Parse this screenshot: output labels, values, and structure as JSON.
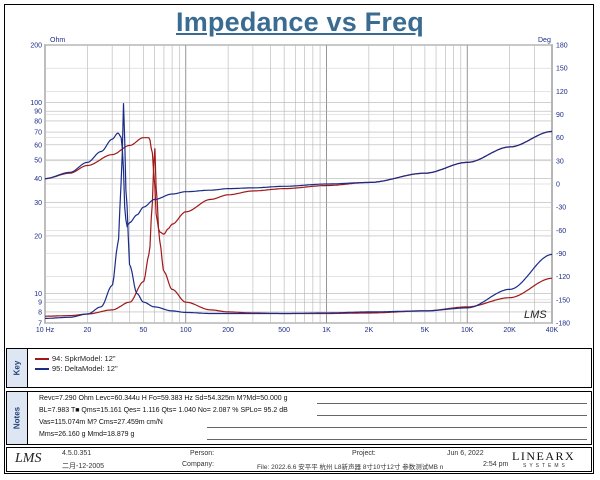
{
  "chart_data": {
    "type": "line",
    "title": "Impedance vs Freq",
    "left_unit": "Ohm",
    "right_unit": "Deg",
    "x_scale": "log",
    "xlim": [
      10,
      40000
    ],
    "ylim_left": [
      7,
      200
    ],
    "ylim_right": [
      -180,
      180
    ],
    "x_ticks": [
      {
        "v": 10,
        "t": "10 Hz"
      },
      {
        "v": 20,
        "t": "20"
      },
      {
        "v": 50,
        "t": "50"
      },
      {
        "v": 100,
        "t": "100"
      },
      {
        "v": 200,
        "t": "200"
      },
      {
        "v": 500,
        "t": "500"
      },
      {
        "v": 1000,
        "t": "1K"
      },
      {
        "v": 2000,
        "t": "2K"
      },
      {
        "v": 5000,
        "t": "5K"
      },
      {
        "v": 10000,
        "t": "10K"
      },
      {
        "v": 20000,
        "t": "20K"
      },
      {
        "v": 40000,
        "t": "40K"
      }
    ],
    "y_left_ticks": [
      {
        "v": 200,
        "t": "200"
      },
      {
        "v": 100,
        "t": "100"
      },
      {
        "v": 90,
        "t": "90"
      },
      {
        "v": 80,
        "t": "80"
      },
      {
        "v": 70,
        "t": "70"
      },
      {
        "v": 60,
        "t": "60"
      },
      {
        "v": 50,
        "t": "50"
      },
      {
        "v": 40,
        "t": "40"
      },
      {
        "v": 30,
        "t": "30"
      },
      {
        "v": 20,
        "t": "20"
      },
      {
        "v": 10,
        "t": "10"
      },
      {
        "v": 9,
        "t": "9"
      },
      {
        "v": 8,
        "t": "8"
      },
      {
        "v": 7,
        "t": "7"
      }
    ],
    "y_right_ticks": [
      180,
      150,
      120,
      90,
      60,
      30,
      0,
      -30,
      -60,
      -90,
      -120,
      -150,
      -180
    ],
    "grid": true,
    "series": [
      {
        "name": "94: SpkrModel: 12\"",
        "axis": "left",
        "color": "#a01818",
        "x": [
          10,
          15,
          20,
          30,
          40,
          50,
          55,
          58,
          60,
          62,
          65,
          70,
          80,
          100,
          150,
          200,
          300,
          500,
          1000,
          2000,
          5000,
          10000,
          20000,
          40000
        ],
        "y": [
          7.6,
          7.65,
          7.8,
          8.2,
          9.0,
          11.5,
          16,
          30,
          60,
          33,
          19,
          13,
          10.5,
          9,
          8.2,
          8.0,
          7.9,
          7.85,
          7.85,
          7.9,
          8.1,
          8.5,
          9.5,
          12
        ]
      },
      {
        "name": "94: SpkrModel: 12\" phase",
        "axis": "right",
        "color": "#a01818",
        "x": [
          10,
          15,
          20,
          30,
          40,
          50,
          55,
          58,
          60,
          62,
          65,
          70,
          75,
          80,
          100,
          150,
          200,
          300,
          500,
          1000,
          2000,
          5000,
          10000,
          20000,
          40000
        ],
        "y": [
          7,
          14,
          24,
          38,
          50,
          60,
          60,
          40,
          0,
          -45,
          -62,
          -65,
          -58,
          -52,
          -36,
          -20,
          -14,
          -9,
          -6,
          -2,
          2,
          14,
          28,
          48,
          68
        ]
      },
      {
        "name": "95: DeltaModel: 12\"",
        "axis": "left",
        "color": "#1b2c88",
        "x": [
          10,
          15,
          20,
          25,
          30,
          33,
          35,
          36,
          38,
          40,
          45,
          50,
          60,
          80,
          100,
          150,
          200,
          300,
          500,
          1000,
          2000,
          5000,
          10000,
          20000,
          40000
        ],
        "y": [
          7.4,
          7.5,
          7.8,
          8.5,
          11,
          18,
          40,
          100,
          30,
          14,
          10,
          9,
          8.5,
          8.1,
          7.95,
          7.85,
          7.85,
          7.85,
          7.85,
          7.9,
          8.0,
          8.1,
          8.4,
          10.5,
          16
        ]
      },
      {
        "name": "95: DeltaModel: 12\" phase",
        "axis": "right",
        "color": "#1b2c88",
        "x": [
          10,
          15,
          20,
          25,
          30,
          33,
          35,
          36,
          37,
          38,
          40,
          45,
          50,
          60,
          80,
          100,
          150,
          200,
          300,
          500,
          1000,
          2000,
          5000,
          10000,
          20000,
          40000
        ],
        "y": [
          7,
          15,
          28,
          42,
          58,
          66,
          60,
          20,
          -35,
          -55,
          -50,
          -40,
          -30,
          -20,
          -13,
          -10,
          -8,
          -6,
          -5,
          -3,
          0,
          2,
          14,
          28,
          48,
          68
        ]
      }
    ]
  },
  "plot_badge": "LMS",
  "legend": {
    "side_label": "Key",
    "items": [
      {
        "text": "94: SpkrModel: 12\"",
        "color": "#a01818"
      },
      {
        "text": "95: DeltaModel: 12\"",
        "color": "#1b2c88"
      }
    ]
  },
  "notes": {
    "side_label": "Notes",
    "lines": [
      "Revc=7.290 Ohm  Levc=60.344u H  Fo=59.383 Hz  Sd=54.325m M?Md=50.000 g",
      "BL=7.983 T■  Qms=15.161  Qes= 1.116  Qts= 1.040  No= 2.087 %  SPLo= 95.2 dB",
      "Vas=115.074m M? Cms=27.459m cm/N",
      "Mms=26.160 g  Mmd=18.879 g"
    ]
  },
  "footer": {
    "logo": "LMS",
    "version": "4.5.0.351",
    "version_date": "二月-12-2005",
    "person_label": "Person:",
    "company_label": "Company:",
    "project_label": "Project:",
    "file_text": "File: 2022.6.6 安平平 杭州 L8新声器 8寸10寸12寸 参数测试MB n",
    "date": "Jun  6, 2022",
    "time": "2:54 pm",
    "brand": "LINEARX",
    "brand_sub": "SYSTEMS"
  }
}
